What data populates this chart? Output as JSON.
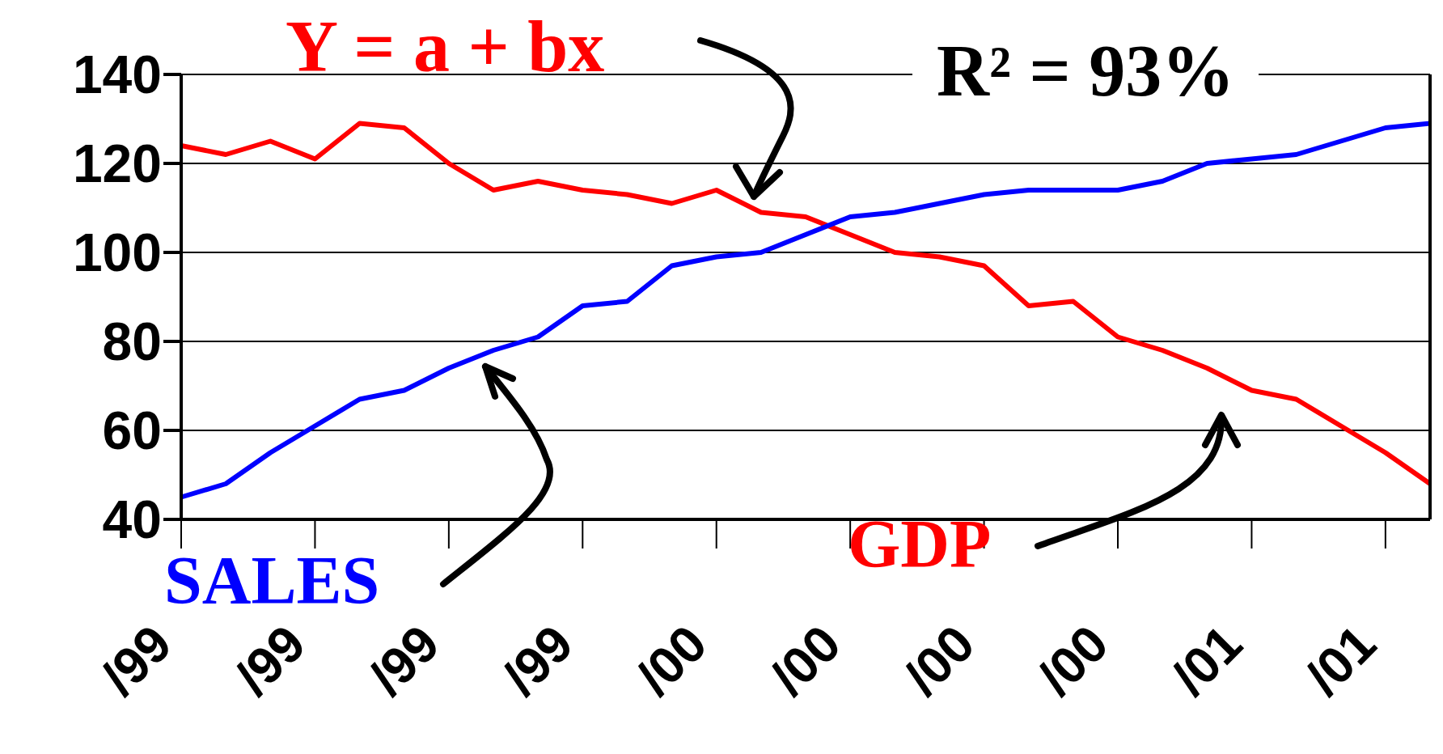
{
  "chart_data": {
    "type": "line",
    "annotations": [
      "Y = a + bx",
      "R² = 93%"
    ],
    "categories": [
      "/99",
      null,
      null,
      "/99",
      null,
      null,
      "/99",
      null,
      null,
      "/99",
      null,
      null,
      "/00",
      null,
      null,
      "/00",
      null,
      null,
      "/00",
      null,
      null,
      "/00",
      null,
      null,
      "/01",
      null,
      null,
      "/01",
      null
    ],
    "series": [
      {
        "name": "GDP",
        "color": "#ff0000",
        "values": [
          124,
          122,
          125,
          121,
          129,
          128,
          120,
          114,
          116,
          114,
          113,
          111,
          114,
          109,
          108,
          104,
          100,
          99,
          97,
          88,
          89,
          81,
          78,
          74,
          69,
          67,
          61,
          55,
          48
        ]
      },
      {
        "name": "SALES",
        "color": "#0000ff",
        "values": [
          45,
          48,
          55,
          61,
          67,
          69,
          74,
          78,
          81,
          88,
          89,
          97,
          99,
          100,
          104,
          108,
          109,
          111,
          113,
          114,
          114,
          114,
          116,
          120,
          121,
          122,
          125,
          128,
          129
        ]
      }
    ],
    "ylim": [
      40,
      140
    ],
    "yticks": [
      40,
      60,
      80,
      100,
      120,
      140
    ],
    "grid": "y",
    "legend": false,
    "marker": "none",
    "line_style": "solid"
  }
}
